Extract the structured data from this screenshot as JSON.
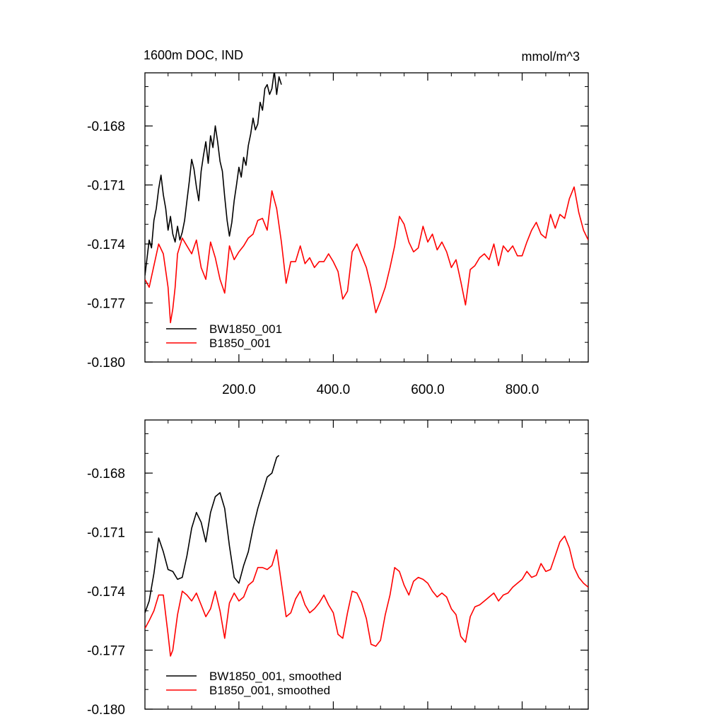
{
  "chart_data": [
    {
      "type": "line",
      "title": "1600m DOC, IND",
      "units": "mmol/m^3",
      "xlim": [
        1,
        940
      ],
      "ylim": [
        -0.18,
        -0.1653
      ],
      "y_ticks": [
        "-0.168",
        "-0.171",
        "-0.174",
        "-0.177",
        "-0.180"
      ],
      "y_tick_values": [
        -0.168,
        -0.171,
        -0.174,
        -0.177,
        -0.18
      ],
      "x_ticks": [
        "200.0",
        "400.0",
        "600.0",
        "800.0"
      ],
      "x_tick_values": [
        200,
        400,
        600,
        800
      ],
      "legend_position": "bottom-left",
      "series": [
        {
          "name": "BW1850_001",
          "color": "#000000",
          "x": [
            1,
            5,
            10,
            15,
            20,
            25,
            30,
            35,
            40,
            45,
            50,
            55,
            60,
            65,
            70,
            75,
            80,
            85,
            90,
            95,
            100,
            105,
            110,
            115,
            120,
            125,
            130,
            135,
            140,
            145,
            150,
            155,
            160,
            165,
            170,
            175,
            180,
            185,
            190,
            195,
            200,
            205,
            210,
            215,
            220,
            225,
            230,
            235,
            240,
            245,
            250,
            255,
            260,
            265,
            270,
            275,
            280,
            285,
            290
          ],
          "y": [
            -0.1756,
            -0.1748,
            -0.1738,
            -0.1742,
            -0.1728,
            -0.1722,
            -0.1712,
            -0.1705,
            -0.1715,
            -0.1722,
            -0.1733,
            -0.1726,
            -0.1735,
            -0.1739,
            -0.1731,
            -0.1738,
            -0.1734,
            -0.1728,
            -0.1718,
            -0.1708,
            -0.1697,
            -0.1702,
            -0.1711,
            -0.1718,
            -0.1703,
            -0.1695,
            -0.1688,
            -0.1699,
            -0.1685,
            -0.1691,
            -0.168,
            -0.1688,
            -0.1698,
            -0.1703,
            -0.1716,
            -0.1728,
            -0.1736,
            -0.1729,
            -0.1718,
            -0.171,
            -0.1701,
            -0.1706,
            -0.1696,
            -0.17,
            -0.169,
            -0.1684,
            -0.1676,
            -0.1682,
            -0.1679,
            -0.1668,
            -0.1672,
            -0.1661,
            -0.1659,
            -0.1664,
            -0.1661,
            -0.1652,
            -0.1664,
            -0.1655,
            -0.1659
          ]
        },
        {
          "name": "B1850_001",
          "color": "#ff0000",
          "x": [
            1,
            10,
            20,
            30,
            40,
            50,
            55,
            60,
            65,
            70,
            80,
            90,
            100,
            110,
            120,
            130,
            140,
            150,
            160,
            170,
            180,
            190,
            200,
            210,
            220,
            230,
            240,
            250,
            260,
            270,
            280,
            290,
            300,
            310,
            320,
            330,
            340,
            350,
            360,
            370,
            380,
            390,
            400,
            410,
            420,
            430,
            440,
            450,
            460,
            470,
            480,
            490,
            500,
            510,
            520,
            530,
            540,
            550,
            560,
            570,
            580,
            590,
            600,
            610,
            620,
            630,
            640,
            650,
            660,
            670,
            680,
            690,
            700,
            710,
            720,
            730,
            740,
            750,
            760,
            770,
            780,
            790,
            800,
            810,
            820,
            830,
            840,
            850,
            860,
            870,
            880,
            890,
            900,
            910,
            920,
            930,
            940
          ],
          "y": [
            -0.1758,
            -0.1762,
            -0.1751,
            -0.174,
            -0.1745,
            -0.1762,
            -0.178,
            -0.1773,
            -0.1762,
            -0.1745,
            -0.1737,
            -0.1741,
            -0.1745,
            -0.1738,
            -0.1752,
            -0.1758,
            -0.1739,
            -0.1747,
            -0.1758,
            -0.1765,
            -0.1741,
            -0.1748,
            -0.1744,
            -0.1741,
            -0.1737,
            -0.1735,
            -0.1728,
            -0.1727,
            -0.1733,
            -0.1713,
            -0.1722,
            -0.1739,
            -0.176,
            -0.1749,
            -0.1749,
            -0.1741,
            -0.175,
            -0.1747,
            -0.1752,
            -0.1749,
            -0.1749,
            -0.1745,
            -0.1749,
            -0.1754,
            -0.1768,
            -0.1764,
            -0.1744,
            -0.174,
            -0.1746,
            -0.1752,
            -0.1762,
            -0.1775,
            -0.1769,
            -0.1762,
            -0.1752,
            -0.1741,
            -0.1726,
            -0.173,
            -0.1739,
            -0.1744,
            -0.1742,
            -0.1731,
            -0.1739,
            -0.1735,
            -0.1743,
            -0.1739,
            -0.1744,
            -0.1752,
            -0.1748,
            -0.1759,
            -0.1771,
            -0.1753,
            -0.1751,
            -0.1747,
            -0.1745,
            -0.1748,
            -0.174,
            -0.1751,
            -0.1741,
            -0.1744,
            -0.1741,
            -0.1746,
            -0.1746,
            -0.1739,
            -0.1733,
            -0.1729,
            -0.1735,
            -0.1737,
            -0.1725,
            -0.1732,
            -0.1725,
            -0.1727,
            -0.1717,
            -0.1711,
            -0.1724,
            -0.1733,
            -0.1738
          ]
        }
      ]
    },
    {
      "type": "line",
      "xlim": [
        1,
        940
      ],
      "ylim": [
        -0.18,
        -0.1653
      ],
      "y_ticks": [
        "-0.168",
        "-0.171",
        "-0.174",
        "-0.177",
        "-0.180"
      ],
      "y_tick_values": [
        -0.168,
        -0.171,
        -0.174,
        -0.177,
        -0.18
      ],
      "x_tick_values": [
        200,
        400,
        600,
        800
      ],
      "legend_position": "bottom-left",
      "series": [
        {
          "name": "BW1850_001, smoothed",
          "color": "#000000",
          "x": [
            1,
            10,
            20,
            30,
            40,
            50,
            60,
            70,
            80,
            90,
            100,
            110,
            120,
            130,
            140,
            150,
            160,
            170,
            180,
            190,
            200,
            210,
            220,
            230,
            240,
            250,
            260,
            270,
            280,
            285
          ],
          "y": [
            -0.1751,
            -0.1745,
            -0.1731,
            -0.1713,
            -0.172,
            -0.1729,
            -0.173,
            -0.1734,
            -0.1733,
            -0.1722,
            -0.1708,
            -0.17,
            -0.1705,
            -0.1715,
            -0.17,
            -0.1692,
            -0.169,
            -0.1698,
            -0.1717,
            -0.1733,
            -0.1736,
            -0.1727,
            -0.172,
            -0.1708,
            -0.1698,
            -0.169,
            -0.1682,
            -0.168,
            -0.1672,
            -0.1671
          ]
        },
        {
          "name": "B1850_001, smoothed",
          "color": "#ff0000",
          "x": [
            1,
            10,
            20,
            30,
            40,
            50,
            55,
            60,
            70,
            80,
            90,
            100,
            110,
            120,
            130,
            140,
            150,
            160,
            170,
            180,
            190,
            200,
            210,
            220,
            230,
            240,
            250,
            260,
            270,
            280,
            290,
            300,
            310,
            320,
            330,
            340,
            350,
            360,
            370,
            380,
            390,
            400,
            410,
            420,
            430,
            440,
            450,
            460,
            470,
            480,
            490,
            500,
            510,
            520,
            530,
            540,
            550,
            560,
            570,
            580,
            590,
            600,
            610,
            620,
            630,
            640,
            650,
            660,
            670,
            680,
            690,
            700,
            710,
            720,
            730,
            740,
            750,
            760,
            770,
            780,
            790,
            800,
            810,
            820,
            830,
            840,
            850,
            860,
            870,
            880,
            890,
            900,
            910,
            920,
            930,
            940
          ],
          "y": [
            -0.1759,
            -0.1755,
            -0.175,
            -0.1742,
            -0.1742,
            -0.1762,
            -0.1773,
            -0.177,
            -0.1752,
            -0.174,
            -0.1742,
            -0.1745,
            -0.1741,
            -0.1747,
            -0.1753,
            -0.1749,
            -0.174,
            -0.175,
            -0.1764,
            -0.1746,
            -0.1741,
            -0.1745,
            -0.1743,
            -0.1737,
            -0.1735,
            -0.1728,
            -0.1728,
            -0.1729,
            -0.1727,
            -0.1719,
            -0.1736,
            -0.1753,
            -0.1751,
            -0.1744,
            -0.174,
            -0.1747,
            -0.1751,
            -0.1749,
            -0.1746,
            -0.1742,
            -0.1747,
            -0.1751,
            -0.1762,
            -0.1764,
            -0.1751,
            -0.174,
            -0.1741,
            -0.1746,
            -0.1754,
            -0.1767,
            -0.1768,
            -0.1765,
            -0.1752,
            -0.1742,
            -0.1728,
            -0.173,
            -0.1737,
            -0.1742,
            -0.1735,
            -0.1733,
            -0.1734,
            -0.1736,
            -0.174,
            -0.1743,
            -0.1741,
            -0.1743,
            -0.1749,
            -0.1752,
            -0.1763,
            -0.1766,
            -0.1753,
            -0.1748,
            -0.1747,
            -0.1745,
            -0.1743,
            -0.1741,
            -0.1745,
            -0.1742,
            -0.1741,
            -0.1738,
            -0.1736,
            -0.1734,
            -0.173,
            -0.1733,
            -0.1732,
            -0.1726,
            -0.173,
            -0.1729,
            -0.1722,
            -0.1715,
            -0.1712,
            -0.1718,
            -0.1728,
            -0.1733,
            -0.1736,
            -0.1738
          ]
        }
      ]
    }
  ]
}
